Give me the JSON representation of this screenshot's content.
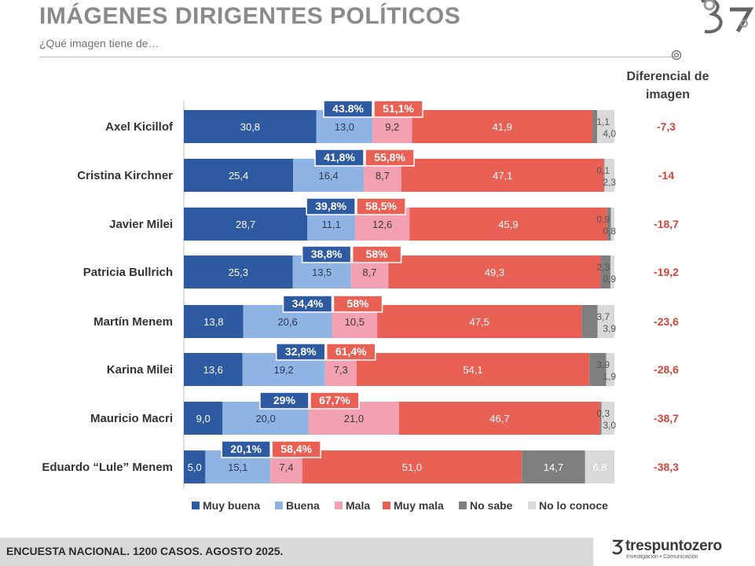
{
  "title": "IMÁGENES DIRIGENTES POLÍTICOS",
  "subtitle": "¿Qué imagen tiene de…",
  "diff_header": "Diferencial de imagen",
  "footer": "ENCUESTA NACIONAL. 1200 CASOS. AGOSTO 2025.",
  "brand": {
    "name": "trespuntozero",
    "tagline": "Investigación • Comunicación",
    "mark": "3"
  },
  "colors": {
    "muy_buena": "#2e5aa1",
    "buena": "#8fb4e3",
    "mala": "#f2a0b2",
    "muy_mala": "#e96054",
    "no_sabe": "#7f7f7f",
    "no_lo_conoce": "#d9d9d9",
    "diff_text": "#d9443a"
  },
  "chart_data": {
    "type": "bar",
    "orientation": "horizontal",
    "stacked": true,
    "xlim": [
      0,
      100
    ],
    "legend_position": "bottom",
    "categories": [
      "Axel Kicillof",
      "Cristina Kirchner",
      "Javier Milei",
      "Patricia Bullrich",
      "Martín Menem",
      "Karina Milei",
      "Mauricio Macri",
      "Eduardo “Lule” Menem"
    ],
    "series": [
      {
        "name": "Muy buena",
        "values": [
          30.8,
          25.4,
          28.7,
          25.3,
          13.8,
          13.6,
          9.0,
          5.0
        ],
        "labels": [
          "30,8",
          "25,4",
          "28,7",
          "25,3",
          "13,8",
          "13,6",
          "9,0",
          "5,0"
        ]
      },
      {
        "name": "Buena",
        "values": [
          13.0,
          16.4,
          11.1,
          13.5,
          20.6,
          19.2,
          20.0,
          15.1
        ],
        "labels": [
          "13,0",
          "16,4",
          "11,1",
          "13,5",
          "20,6",
          "19,2",
          "20,0",
          "15,1"
        ]
      },
      {
        "name": "Mala",
        "values": [
          9.2,
          8.7,
          12.6,
          8.7,
          10.5,
          7.3,
          21.0,
          7.4
        ],
        "labels": [
          "9,2",
          "8,7",
          "12,6",
          "8,7",
          "10,5",
          "7,3",
          "21,0",
          "7,4"
        ]
      },
      {
        "name": "Muy mala",
        "values": [
          41.9,
          47.1,
          45.9,
          49.3,
          47.5,
          54.1,
          46.7,
          51.0
        ],
        "labels": [
          "41,9",
          "47,1",
          "45,9",
          "49,3",
          "47,5",
          "54,1",
          "46,7",
          "51,0"
        ]
      },
      {
        "name": "No  sabe",
        "values": [
          1.1,
          0.1,
          0.9,
          2.3,
          3.7,
          3.9,
          0.3,
          14.7
        ],
        "labels": [
          "1,1",
          "0,1",
          "0,9",
          "2,3",
          "3,7",
          "3,9",
          "0,3",
          "14,7"
        ]
      },
      {
        "name": "No lo conoce",
        "values": [
          4.0,
          2.3,
          0.8,
          0.9,
          3.9,
          1.9,
          3.0,
          6.8
        ],
        "labels": [
          "4,0",
          "2,3",
          "0,8",
          "0,9",
          "3,9",
          "1,9",
          "3,0",
          "6,8"
        ]
      }
    ],
    "positive_totals": [
      "43.8%",
      "41,8%",
      "39,8%",
      "38,8%",
      "34,4%",
      "32,8%",
      "29%",
      "20,1%"
    ],
    "negative_totals": [
      "51,1%",
      "55,8%",
      "58,5%",
      "58%",
      "58%",
      "61,4%",
      "67,7%",
      "58,4%"
    ],
    "diferencial": [
      "-7,3",
      "-14",
      "-18,7",
      "-19,2",
      "-23,6",
      "-28,6",
      "-38,7",
      "-38,3"
    ]
  }
}
